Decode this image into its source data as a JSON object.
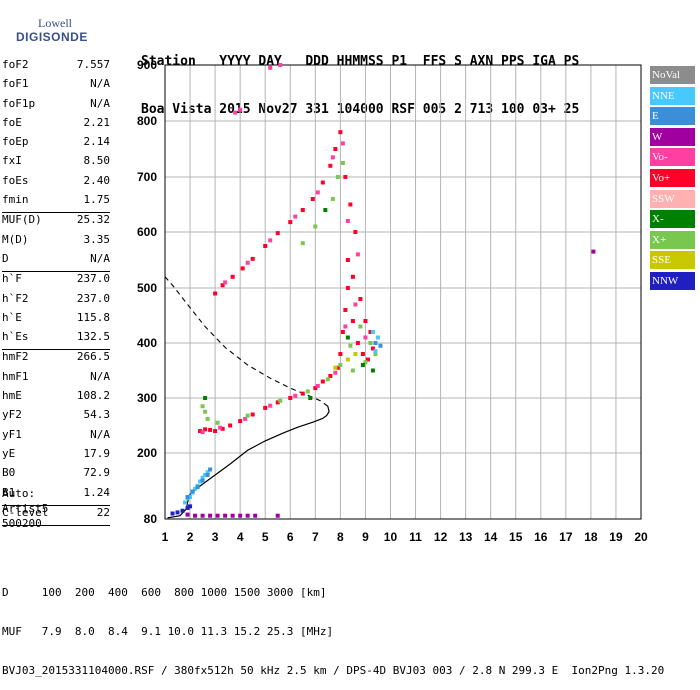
{
  "logo": {
    "line1": "Lowell",
    "line2": "DIGISONDE"
  },
  "header": {
    "line1": "Station   YYYY DAY   DDD HHMMSS P1  FFS S AXN PPS IGA PS",
    "line2": "Boa Vista 2015 Nov27 331 104000 RSF 005 2 713 100 03+ 25"
  },
  "params": [
    {
      "label": "foF2",
      "value": "7.557"
    },
    {
      "label": "foF1",
      "value": "N/A"
    },
    {
      "label": "foF1p",
      "value": "N/A"
    },
    {
      "label": "foE",
      "value": "2.21"
    },
    {
      "label": "foEp",
      "value": "2.14"
    },
    {
      "label": "fxI",
      "value": "8.50"
    },
    {
      "label": "foEs",
      "value": "2.40"
    },
    {
      "label": "fmin",
      "value": "1.75"
    },
    {
      "sep": true
    },
    {
      "label": "MUF(D)",
      "value": "25.32"
    },
    {
      "label": "M(D)",
      "value": "3.35"
    },
    {
      "label": "D",
      "value": "N/A"
    },
    {
      "sep": true
    },
    {
      "label": "h`F",
      "value": "237.0"
    },
    {
      "label": "h`F2",
      "value": "237.0"
    },
    {
      "label": "h`E",
      "value": "115.8"
    },
    {
      "label": "h`Es",
      "value": "132.5"
    },
    {
      "sep": true
    },
    {
      "label": "hmF2",
      "value": "266.5"
    },
    {
      "label": "hmF1",
      "value": "N/A"
    },
    {
      "label": "hmE",
      "value": "108.2"
    },
    {
      "label": "yF2",
      "value": "54.3"
    },
    {
      "label": "yF1",
      "value": "N/A"
    },
    {
      "label": "yE",
      "value": "17.9"
    },
    {
      "label": "B0",
      "value": "72.9"
    },
    {
      "label": "B1",
      "value": "1.24"
    },
    {
      "sep": true
    },
    {
      "label": "C-level",
      "value": "22"
    },
    {
      "sep": true
    }
  ],
  "auto": {
    "l1": "Auto:",
    "l2": "Artist5",
    "l3": "500200"
  },
  "legend": [
    {
      "label": "NoVal",
      "color": "#8c8c8c"
    },
    {
      "label": "NNE",
      "color": "#47c8ff"
    },
    {
      "label": "E",
      "color": "#3a8fd8"
    },
    {
      "label": "W",
      "color": "#a000a0"
    },
    {
      "label": "Vo-",
      "color": "#ff40a0"
    },
    {
      "label": "Vo+",
      "color": "#ff0028"
    },
    {
      "label": "SSW",
      "color": "#ffb0b0"
    },
    {
      "label": "X-",
      "color": "#008000"
    },
    {
      "label": "X+",
      "color": "#78c850"
    },
    {
      "label": "SSE",
      "color": "#c8c800"
    },
    {
      "label": "NNW",
      "color": "#2020c0"
    }
  ],
  "footer": {
    "l1": "D     100  200  400  600  800 1000 1500 3000 [km]",
    "l2": "MUF   7.9  8.0  8.4  9.1 10.0 11.3 15.2 25.3 [MHz]",
    "l3": "BVJ03_2015331104000.RSF / 380fx512h 50 kHz 2.5 km / DPS-4D BVJ03 003 / 2.8 N 299.3 E  Ion2Png 1.3.20"
  },
  "chart_data": {
    "type": "scatter",
    "xlim": [
      1,
      20
    ],
    "ylim": [
      80,
      900
    ],
    "xticks": [
      "1",
      "2",
      "3",
      "4",
      "5",
      "6",
      "7",
      "8",
      "9",
      "10",
      "11",
      "12",
      "13",
      "14",
      "15",
      "16",
      "17",
      "18",
      "19",
      "20"
    ],
    "yticks": [
      "80",
      "200",
      "300",
      "400",
      "500",
      "600",
      "700",
      "800",
      "900"
    ],
    "grid": true,
    "series": [
      {
        "name": "Vo+",
        "color": "#ff0028",
        "points": [
          [
            2.4,
            240
          ],
          [
            2.6,
            243
          ],
          [
            2.8,
            242
          ],
          [
            3.0,
            240
          ],
          [
            3.3,
            244
          ],
          [
            3.6,
            250
          ],
          [
            4.0,
            258
          ],
          [
            4.5,
            270
          ],
          [
            5.0,
            282
          ],
          [
            5.5,
            292
          ],
          [
            6.0,
            300
          ],
          [
            6.5,
            308
          ],
          [
            7.0,
            318
          ],
          [
            7.3,
            330
          ],
          [
            7.6,
            340
          ],
          [
            7.9,
            355
          ],
          [
            8.0,
            380
          ],
          [
            8.1,
            420
          ],
          [
            8.2,
            460
          ],
          [
            8.3,
            500
          ],
          [
            8.5,
            440
          ],
          [
            8.7,
            400
          ],
          [
            8.9,
            380
          ],
          [
            9.1,
            370
          ],
          [
            9.3,
            390
          ],
          [
            3.0,
            490
          ],
          [
            3.3,
            505
          ],
          [
            3.7,
            520
          ],
          [
            4.1,
            535
          ],
          [
            4.5,
            552
          ],
          [
            5.0,
            575
          ],
          [
            5.5,
            598
          ],
          [
            6.0,
            618
          ],
          [
            6.5,
            640
          ],
          [
            6.9,
            660
          ],
          [
            7.3,
            690
          ],
          [
            7.6,
            720
          ],
          [
            7.8,
            750
          ],
          [
            8.0,
            780
          ],
          [
            8.2,
            700
          ],
          [
            8.4,
            650
          ],
          [
            8.6,
            600
          ],
          [
            8.3,
            550
          ],
          [
            8.5,
            520
          ],
          [
            8.8,
            480
          ],
          [
            9.0,
            440
          ],
          [
            9.2,
            420
          ]
        ]
      },
      {
        "name": "Vo-",
        "color": "#ff40a0",
        "points": [
          [
            2.5,
            238
          ],
          [
            3.2,
            246
          ],
          [
            4.2,
            262
          ],
          [
            5.2,
            286
          ],
          [
            6.2,
            304
          ],
          [
            7.1,
            322
          ],
          [
            7.8,
            346
          ],
          [
            8.2,
            430
          ],
          [
            8.6,
            470
          ],
          [
            9.0,
            410
          ],
          [
            3.4,
            510
          ],
          [
            4.3,
            545
          ],
          [
            5.2,
            585
          ],
          [
            6.2,
            628
          ],
          [
            7.1,
            672
          ],
          [
            7.7,
            735
          ],
          [
            8.1,
            760
          ],
          [
            8.3,
            620
          ],
          [
            8.7,
            560
          ],
          [
            5.2,
            895
          ],
          [
            5.6,
            900
          ],
          [
            3.8,
            815
          ],
          [
            4.0,
            820
          ]
        ]
      },
      {
        "name": "X+",
        "color": "#78c850",
        "points": [
          [
            2.5,
            285
          ],
          [
            2.6,
            275
          ],
          [
            2.7,
            262
          ],
          [
            3.1,
            255
          ],
          [
            4.3,
            268
          ],
          [
            5.6,
            295
          ],
          [
            6.7,
            312
          ],
          [
            7.5,
            334
          ],
          [
            8.0,
            360
          ],
          [
            8.4,
            395
          ],
          [
            8.8,
            430
          ],
          [
            9.2,
            400
          ],
          [
            9.4,
            380
          ],
          [
            7.7,
            660
          ],
          [
            7.9,
            700
          ],
          [
            8.1,
            725
          ],
          [
            7.0,
            610
          ],
          [
            6.5,
            580
          ],
          [
            8.5,
            350
          ],
          [
            9.0,
            365
          ]
        ]
      },
      {
        "name": "X-",
        "color": "#008000",
        "points": [
          [
            2.6,
            300
          ],
          [
            8.3,
            410
          ],
          [
            8.9,
            360
          ],
          [
            9.3,
            350
          ],
          [
            7.4,
            640
          ],
          [
            6.8,
            300
          ]
        ]
      },
      {
        "name": "NNE",
        "color": "#47c8ff",
        "points": [
          [
            1.8,
            110
          ],
          [
            1.9,
            118
          ],
          [
            2.0,
            120
          ],
          [
            2.1,
            128
          ],
          [
            2.2,
            135
          ],
          [
            2.3,
            140
          ],
          [
            2.4,
            148
          ],
          [
            2.5,
            155
          ],
          [
            2.6,
            160
          ],
          [
            2.7,
            165
          ],
          [
            9.3,
            420
          ],
          [
            9.5,
            410
          ],
          [
            9.4,
            385
          ]
        ]
      },
      {
        "name": "E",
        "color": "#3a8fd8",
        "points": [
          [
            1.9,
            120
          ],
          [
            2.1,
            130
          ],
          [
            2.3,
            138
          ],
          [
            2.5,
            150
          ],
          [
            2.7,
            160
          ],
          [
            2.8,
            170
          ],
          [
            9.4,
            400
          ],
          [
            9.6,
            395
          ]
        ]
      },
      {
        "name": "W",
        "color": "#a000a0",
        "points": [
          [
            1.9,
            88
          ],
          [
            2.2,
            86
          ],
          [
            2.5,
            86
          ],
          [
            2.8,
            86
          ],
          [
            3.1,
            86
          ],
          [
            3.4,
            86
          ],
          [
            3.7,
            86
          ],
          [
            4.0,
            86
          ],
          [
            4.3,
            86
          ],
          [
            4.6,
            86
          ],
          [
            5.5,
            86
          ],
          [
            18.1,
            565
          ]
        ]
      },
      {
        "name": "NNW",
        "color": "#2020c0",
        "points": [
          [
            1.3,
            90
          ],
          [
            1.5,
            92
          ],
          [
            1.7,
            95
          ],
          [
            1.9,
            100
          ],
          [
            2.0,
            103
          ]
        ]
      },
      {
        "name": "SSE",
        "color": "#c8c800",
        "points": [
          [
            8.6,
            380
          ],
          [
            8.3,
            370
          ],
          [
            7.8,
            355
          ]
        ]
      }
    ],
    "profile": [
      [
        1.1,
        82
      ],
      [
        1.6,
        86
      ],
      [
        1.85,
        98
      ],
      [
        1.9,
        110
      ],
      [
        2.0,
        125
      ],
      [
        2.4,
        140
      ],
      [
        3.0,
        160
      ],
      [
        3.6,
        180
      ],
      [
        4.3,
        205
      ],
      [
        5.0,
        222
      ],
      [
        5.7,
        236
      ],
      [
        6.3,
        247
      ],
      [
        6.9,
        256
      ],
      [
        7.3,
        263
      ],
      [
        7.45,
        268
      ],
      [
        7.55,
        275
      ],
      [
        7.5,
        285
      ],
      [
        7.2,
        295
      ],
      [
        6.7,
        305
      ],
      [
        6.0,
        318
      ],
      [
        5.2,
        336
      ],
      [
        4.3,
        360
      ],
      [
        3.4,
        392
      ],
      [
        2.6,
        430
      ],
      [
        1.9,
        470
      ],
      [
        1.3,
        505
      ],
      [
        1.0,
        520
      ]
    ]
  }
}
